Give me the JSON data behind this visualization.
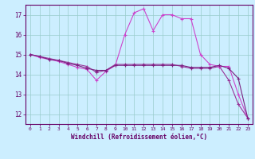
{
  "x": [
    0,
    1,
    2,
    3,
    4,
    5,
    6,
    7,
    8,
    9,
    10,
    11,
    12,
    13,
    14,
    15,
    16,
    17,
    18,
    19,
    20,
    21,
    22,
    23
  ],
  "line1": [
    15.0,
    14.9,
    14.8,
    14.7,
    14.6,
    14.5,
    14.4,
    14.1,
    14.2,
    14.5,
    14.5,
    14.5,
    14.5,
    14.5,
    14.5,
    14.5,
    14.4,
    14.3,
    14.3,
    14.3,
    14.4,
    13.7,
    12.5,
    11.8
  ],
  "line2": [
    15.0,
    14.85,
    14.75,
    14.65,
    14.5,
    14.35,
    14.25,
    13.7,
    14.15,
    14.45,
    16.0,
    17.1,
    17.3,
    16.2,
    17.0,
    17.0,
    16.8,
    16.8,
    15.0,
    14.5,
    14.4,
    14.4,
    13.0,
    11.8
  ],
  "line3": [
    15.0,
    14.9,
    14.75,
    14.7,
    14.55,
    14.45,
    14.3,
    14.2,
    14.2,
    14.45,
    14.45,
    14.45,
    14.45,
    14.45,
    14.45,
    14.45,
    14.45,
    14.35,
    14.35,
    14.35,
    14.45,
    14.3,
    13.8,
    11.8
  ],
  "line_color1": "#993399",
  "line_color2": "#cc44cc",
  "line_color3": "#7a2080",
  "bg_color": "#cceeff",
  "grid_color": "#99cccc",
  "axis_color": "#660066",
  "text_color": "#660066",
  "xlabel": "Windchill (Refroidissement éolien,°C)",
  "xlim": [
    -0.5,
    23.5
  ],
  "ylim": [
    11.5,
    17.5
  ],
  "yticks": [
    12,
    13,
    14,
    15,
    16,
    17
  ],
  "xticks": [
    0,
    1,
    2,
    3,
    4,
    5,
    6,
    7,
    8,
    9,
    10,
    11,
    12,
    13,
    14,
    15,
    16,
    17,
    18,
    19,
    20,
    21,
    22,
    23
  ]
}
